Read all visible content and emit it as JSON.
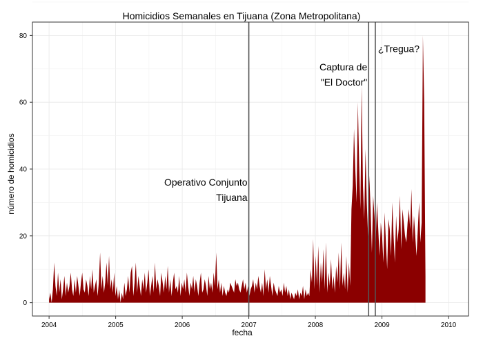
{
  "chart_data": {
    "type": "area",
    "title": "Homicidios Semanales en Tijuana (Zona Metropolitana)",
    "xlabel": "fecha",
    "ylabel": "número de homicidios",
    "x_ticks": [
      "2004",
      "2005",
      "2006",
      "2007",
      "2008",
      "2009",
      "2010"
    ],
    "y_ticks": [
      "0",
      "20",
      "40",
      "60",
      "80"
    ],
    "ylim": [
      -4,
      84
    ],
    "xlim": [
      2003.75,
      2010.3
    ],
    "grid": true,
    "fill_color": "#8B0000",
    "x_start": 2004.0,
    "x_step_weeks": 1,
    "series": [
      {
        "values": [
          1,
          3,
          0,
          4,
          12,
          5,
          2,
          9,
          3,
          7,
          1,
          4,
          8,
          2,
          6,
          3,
          5,
          9,
          4,
          2,
          7,
          3,
          8,
          5,
          2,
          6,
          9,
          4,
          3,
          7,
          5,
          2,
          8,
          4,
          10,
          3,
          5,
          7,
          2,
          6,
          15,
          4,
          8,
          3,
          6,
          12,
          5,
          14,
          4,
          7,
          3,
          9,
          2,
          5,
          1,
          4,
          0,
          3,
          1,
          6,
          2,
          4,
          8,
          3,
          9,
          11,
          2,
          6,
          12,
          3,
          8,
          5,
          2,
          7,
          4,
          9,
          3,
          6,
          10,
          2,
          5,
          8,
          3,
          12,
          4,
          7,
          5,
          2,
          9,
          6,
          3,
          8,
          4,
          11,
          3,
          7,
          2,
          6,
          9,
          4,
          5,
          3,
          8,
          2,
          6,
          4,
          7,
          3,
          9,
          5,
          2,
          6,
          4,
          8,
          3,
          7,
          5,
          2,
          6,
          9,
          3,
          4,
          7,
          5,
          2,
          8,
          4,
          6,
          3,
          9,
          5,
          15,
          4,
          7,
          3,
          6,
          2,
          5,
          3,
          2,
          4,
          3,
          6,
          5,
          4,
          3,
          7,
          5,
          6,
          4,
          3,
          5,
          7,
          4,
          6,
          3,
          5,
          2,
          4,
          5,
          7,
          3,
          6,
          4,
          8,
          5,
          3,
          6,
          2,
          10,
          4,
          7,
          3,
          8,
          5,
          2,
          6,
          4,
          3,
          2,
          5,
          3,
          4,
          2,
          6,
          3,
          5,
          2,
          4,
          1,
          3,
          2,
          1,
          3,
          2,
          4,
          1,
          3,
          2,
          5,
          1,
          4,
          2,
          3,
          2,
          10,
          6,
          19,
          4,
          14,
          5,
          17,
          3,
          12,
          6,
          16,
          4,
          18,
          3,
          9,
          5,
          13,
          4,
          8,
          3,
          11,
          6,
          15,
          4,
          18,
          5,
          9,
          4,
          14,
          3,
          12,
          5,
          28,
          35,
          52,
          40,
          30,
          60,
          42,
          28,
          65,
          35,
          25,
          46,
          30,
          20,
          38,
          28,
          15,
          32,
          26,
          18,
          30,
          22,
          14,
          24,
          20,
          12,
          27,
          18,
          10,
          25,
          22,
          14,
          30,
          20,
          12,
          26,
          18,
          22,
          32,
          16,
          28,
          24,
          20,
          18,
          24,
          28,
          22,
          34,
          18,
          26,
          20,
          14,
          22,
          30,
          18,
          24,
          80,
          60,
          8
        ]
      }
    ],
    "events": [
      {
        "x": 2007.0,
        "label_lines": [
          "Operativo Conjunto",
          "Tijuana"
        ],
        "label_y": [
          35,
          30.5
        ],
        "anchor": "end"
      },
      {
        "x": 2008.8,
        "label_lines": [
          "Captura de",
          "\"El Doctor\""
        ],
        "label_y": [
          69.5,
          65
        ],
        "anchor": "end"
      },
      {
        "x": 2008.9,
        "label_lines": [
          "¿Tregua?"
        ],
        "label_y": [
          75
        ],
        "anchor": "start"
      }
    ]
  }
}
